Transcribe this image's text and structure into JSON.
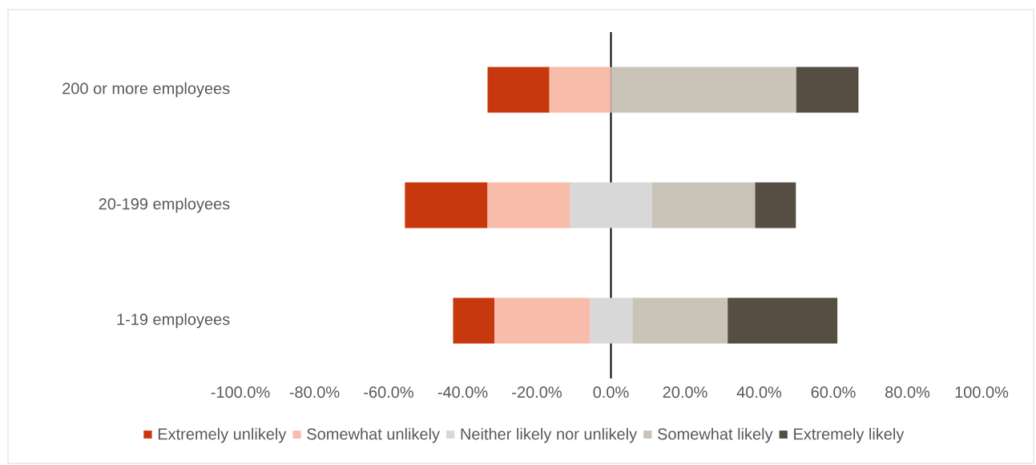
{
  "chart_data": {
    "type": "bar",
    "orientation": "horizontal",
    "legend": "bottom",
    "categories": [
      "200 or more employees",
      "20-199 employees",
      "1-19 employees"
    ],
    "xlim": [
      -100,
      100
    ],
    "xticks": [
      {
        "value": -100,
        "label": "-100.0%"
      },
      {
        "value": -80,
        "label": "-80.0%"
      },
      {
        "value": -60,
        "label": "-60.0%"
      },
      {
        "value": -40,
        "label": "-40.0%"
      },
      {
        "value": -20,
        "label": "-20.0%"
      },
      {
        "value": 0,
        "label": "0.0%"
      },
      {
        "value": 20,
        "label": "20.0%"
      },
      {
        "value": 40,
        "label": "40.0%"
      },
      {
        "value": 60,
        "label": "60.0%"
      },
      {
        "value": 80,
        "label": "80.0%"
      },
      {
        "value": 100,
        "label": "100.0%"
      }
    ],
    "series": [
      {
        "name": "Extremely unlikely",
        "color": "#c8380e",
        "base": [
          -33.3,
          -55.6,
          -42.6
        ],
        "values": [
          16.7,
          22.3,
          11.2
        ]
      },
      {
        "name": "Somewhat unlikely",
        "color": "#f8bcab",
        "base": [
          -16.6,
          -33.3,
          -31.4
        ],
        "values": [
          16.6,
          22.3,
          25.8
        ]
      },
      {
        "name": "Neither likely nor unlikely",
        "color": "#d8d8d8",
        "base": [
          null,
          -11.1,
          -5.6
        ],
        "values": [
          null,
          22.2,
          11.4
        ]
      },
      {
        "name": "Somewhat likely",
        "color": "#cac3b8",
        "base": [
          0,
          11.1,
          5.8
        ],
        "values": [
          50,
          27.8,
          25.7
        ]
      },
      {
        "name": "Extremely likely",
        "color": "#564e43",
        "base": [
          50,
          38.9,
          31.5
        ],
        "values": [
          16.8,
          11.0,
          29.6
        ]
      }
    ]
  }
}
